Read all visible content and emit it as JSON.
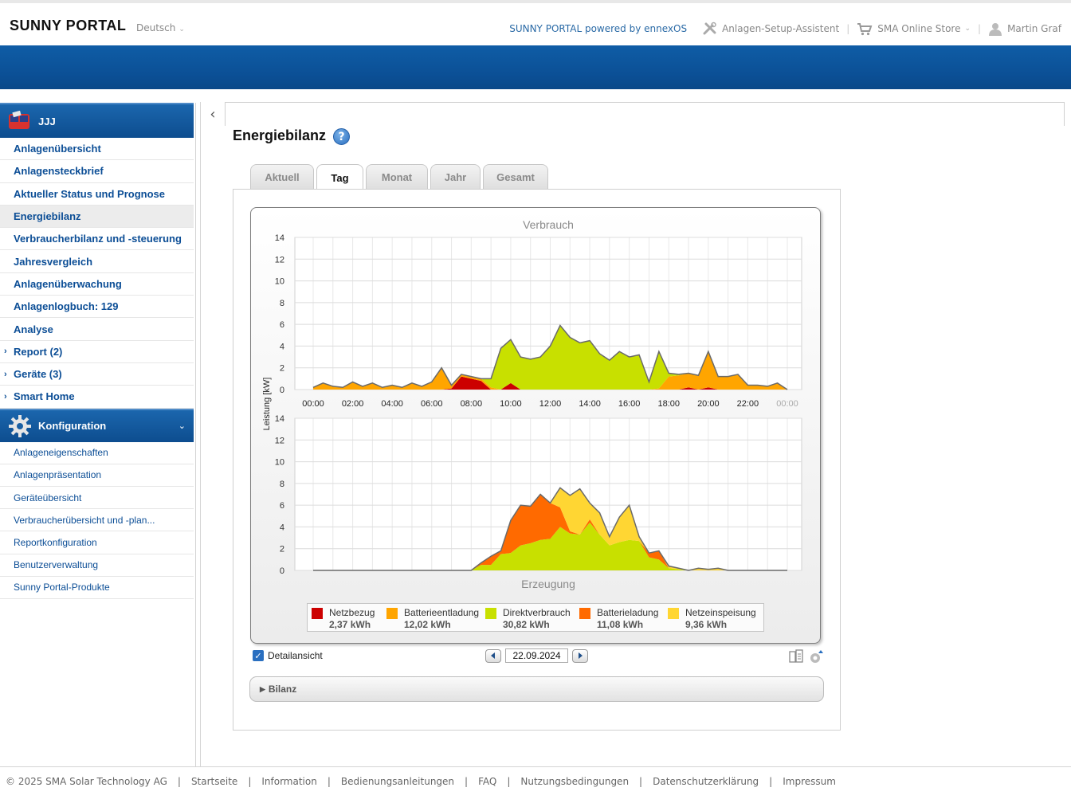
{
  "header": {
    "logo": "SUNNY PORTAL",
    "language": "Deutsch",
    "ennexos_link": "SUNNY PORTAL powered by ennexOS",
    "setup_assistant": "Anlagen-Setup-Assistent",
    "online_store": "SMA Online Store",
    "user": "Martin Graf"
  },
  "sidebar": {
    "plant_name": "JJJ",
    "items": [
      {
        "label": "Anlagenübersicht"
      },
      {
        "label": "Anlagensteckbrief"
      },
      {
        "label": "Aktueller Status und Prognose"
      },
      {
        "label": "Energiebilanz"
      },
      {
        "label": "Verbraucherbilanz und -steuerung"
      },
      {
        "label": "Jahresvergleich"
      },
      {
        "label": "Anlagenüberwachung"
      },
      {
        "label": "Anlagenlogbuch: 129"
      },
      {
        "label": "Analyse"
      },
      {
        "label": "Report (2)"
      },
      {
        "label": "Geräte (3)"
      },
      {
        "label": "Smart Home"
      }
    ],
    "config_title": "Konfiguration",
    "config_items": [
      {
        "label": "Anlageneigenschaften"
      },
      {
        "label": "Anlagenpräsentation"
      },
      {
        "label": "Geräteübersicht"
      },
      {
        "label": "Verbraucherübersicht und -plan..."
      },
      {
        "label": "Reportkonfiguration"
      },
      {
        "label": "Benutzerverwaltung"
      },
      {
        "label": "Sunny Portal-Produkte"
      }
    ]
  },
  "main": {
    "title": "Energiebilanz",
    "tabs": [
      {
        "label": "Aktuell"
      },
      {
        "label": "Tag"
      },
      {
        "label": "Monat"
      },
      {
        "label": "Jahr"
      },
      {
        "label": "Gesamt"
      }
    ],
    "active_tab": "Tag",
    "detail_label": "Detailansicht",
    "detail_checked": true,
    "date": "22.09.2024",
    "bilanz_label": "Bilanz"
  },
  "legend": [
    {
      "name": "Netzbezug",
      "value": "2,37 kWh",
      "color": "#cc0000"
    },
    {
      "name": "Batterieentladung",
      "value": "12,02 kWh",
      "color": "#ffa500"
    },
    {
      "name": "Direktverbrauch",
      "value": "30,82 kWh",
      "color": "#c8e000"
    },
    {
      "name": "Batterieladung",
      "value": "11,08 kWh",
      "color": "#ff6a00"
    },
    {
      "name": "Netzeinspeisung",
      "value": "9,36 kWh",
      "color": "#ffd633"
    }
  ],
  "chart_data": [
    {
      "type": "area",
      "title": "Verbrauch",
      "ylabel": "Leistung [kW]",
      "ylim": [
        0,
        14
      ],
      "yticks": [
        "0",
        "2",
        "4",
        "6",
        "8",
        "10",
        "12",
        "14"
      ],
      "xticks": [
        "00:00",
        "02:00",
        "04:00",
        "06:00",
        "08:00",
        "10:00",
        "12:00",
        "14:00",
        "16:00",
        "18:00",
        "20:00",
        "22:00",
        "00:00"
      ],
      "x": [
        0,
        0.5,
        1,
        1.5,
        2,
        2.5,
        3,
        3.5,
        4,
        4.5,
        5,
        5.5,
        6,
        6.5,
        7,
        7.5,
        8,
        8.5,
        9,
        9.5,
        10,
        10.5,
        11,
        11.5,
        12,
        12.5,
        13,
        13.5,
        14,
        14.5,
        15,
        15.5,
        16,
        16.5,
        17,
        17.5,
        18,
        18.5,
        19,
        19.5,
        20,
        20.5,
        21,
        21.5,
        22,
        22.5,
        23,
        23.5,
        24
      ],
      "series": [
        {
          "name": "Netzbezug",
          "values": [
            0,
            0,
            0,
            0,
            0,
            0,
            0,
            0,
            0,
            0,
            0,
            0,
            0,
            0,
            0.1,
            1.2,
            1.0,
            0.8,
            0,
            0,
            0.6,
            0,
            0,
            0,
            0,
            0,
            0,
            0,
            0,
            0,
            0,
            0,
            0,
            0,
            0,
            0,
            0,
            0,
            0.2,
            0,
            0.2,
            0,
            0,
            0,
            0,
            0,
            0,
            0,
            0
          ]
        },
        {
          "name": "Batterieentladung",
          "values": [
            0.2,
            0.6,
            0.3,
            0.2,
            0.7,
            0.3,
            0.6,
            0.2,
            0.4,
            0.2,
            0.6,
            0.3,
            0.7,
            2.0,
            0.3,
            0.2,
            0.2,
            0.2,
            0.2,
            0,
            0,
            0,
            0,
            0,
            0,
            0,
            0,
            0,
            0,
            0,
            0,
            0,
            0,
            0,
            0,
            0.1,
            1.2,
            1.3,
            1.3,
            1.3,
            3.3,
            1.2,
            1.2,
            1.4,
            0.4,
            0.4,
            0.3,
            0.6,
            0
          ]
        },
        {
          "name": "Direktverbrauch",
          "values": [
            0,
            0,
            0,
            0,
            0,
            0,
            0,
            0,
            0,
            0,
            0,
            0,
            0,
            0,
            0,
            0,
            0,
            0,
            0.8,
            3.8,
            4.0,
            3.0,
            2.8,
            3.0,
            4.0,
            5.9,
            4.8,
            4.3,
            4.5,
            3.3,
            2.7,
            3.5,
            3.0,
            3.2,
            0.7,
            3.4,
            0.3,
            0.1,
            0,
            0,
            0,
            0,
            0,
            0,
            0,
            0,
            0,
            0,
            0
          ]
        }
      ]
    },
    {
      "type": "area",
      "title": "Erzeugung",
      "ylabel": "Leistung [kW]",
      "ylim": [
        0,
        14
      ],
      "yticks": [
        "0",
        "2",
        "4",
        "6",
        "8",
        "10",
        "12",
        "14"
      ],
      "x": [
        0,
        0.5,
        1,
        1.5,
        2,
        2.5,
        3,
        3.5,
        4,
        4.5,
        5,
        5.5,
        6,
        6.5,
        7,
        7.5,
        8,
        8.5,
        9,
        9.5,
        10,
        10.5,
        11,
        11.5,
        12,
        12.5,
        13,
        13.5,
        14,
        14.5,
        15,
        15.5,
        16,
        16.5,
        17,
        17.5,
        18,
        18.5,
        19,
        19.5,
        20,
        20.5,
        21,
        21.5,
        22,
        22.5,
        23,
        23.5,
        24
      ],
      "series": [
        {
          "name": "Direktverbrauch",
          "values": [
            0,
            0,
            0,
            0,
            0,
            0,
            0,
            0,
            0,
            0,
            0,
            0,
            0,
            0,
            0,
            0,
            0,
            0.5,
            0.5,
            1.5,
            1.6,
            2.3,
            2.5,
            2.8,
            2.9,
            4.0,
            3.4,
            3.3,
            4.4,
            3.3,
            2.3,
            2.6,
            2.8,
            2.7,
            1.2,
            1.0,
            0.2,
            0.1,
            0,
            0,
            0,
            0,
            0,
            0,
            0,
            0,
            0,
            0,
            0
          ]
        },
        {
          "name": "Batterieladung",
          "values": [
            0,
            0,
            0,
            0,
            0,
            0,
            0,
            0,
            0,
            0,
            0,
            0,
            0,
            0,
            0,
            0,
            0,
            0.2,
            0.8,
            0.3,
            3.0,
            3.7,
            3.4,
            4.2,
            3.3,
            1.8,
            0.2,
            0,
            0.3,
            0,
            0,
            0,
            0,
            0,
            0.4,
            0.8,
            0,
            0,
            0,
            0,
            0,
            0,
            0,
            0,
            0,
            0,
            0,
            0,
            0
          ]
        },
        {
          "name": "Netzeinspeisung",
          "values": [
            0,
            0,
            0,
            0,
            0,
            0,
            0,
            0,
            0,
            0,
            0,
            0,
            0,
            0,
            0,
            0,
            0,
            0,
            0,
            0,
            0,
            0,
            0,
            0,
            0,
            1.8,
            3.3,
            4.2,
            1.5,
            2.0,
            0.8,
            2.3,
            3.2,
            0.4,
            0,
            0,
            0.2,
            0.1,
            0,
            0.2,
            0.1,
            0.2,
            0,
            0,
            0,
            0,
            0,
            0,
            0
          ]
        }
      ]
    }
  ],
  "footer": {
    "links": [
      {
        "label": "© 2025 SMA Solar Technology AG"
      },
      {
        "label": "Startseite"
      },
      {
        "label": "Information"
      },
      {
        "label": "Bedienungsanleitungen"
      },
      {
        "label": "FAQ"
      },
      {
        "label": "Nutzungsbedingungen"
      },
      {
        "label": "Datenschutzerklärung"
      },
      {
        "label": "Impressum"
      }
    ]
  }
}
